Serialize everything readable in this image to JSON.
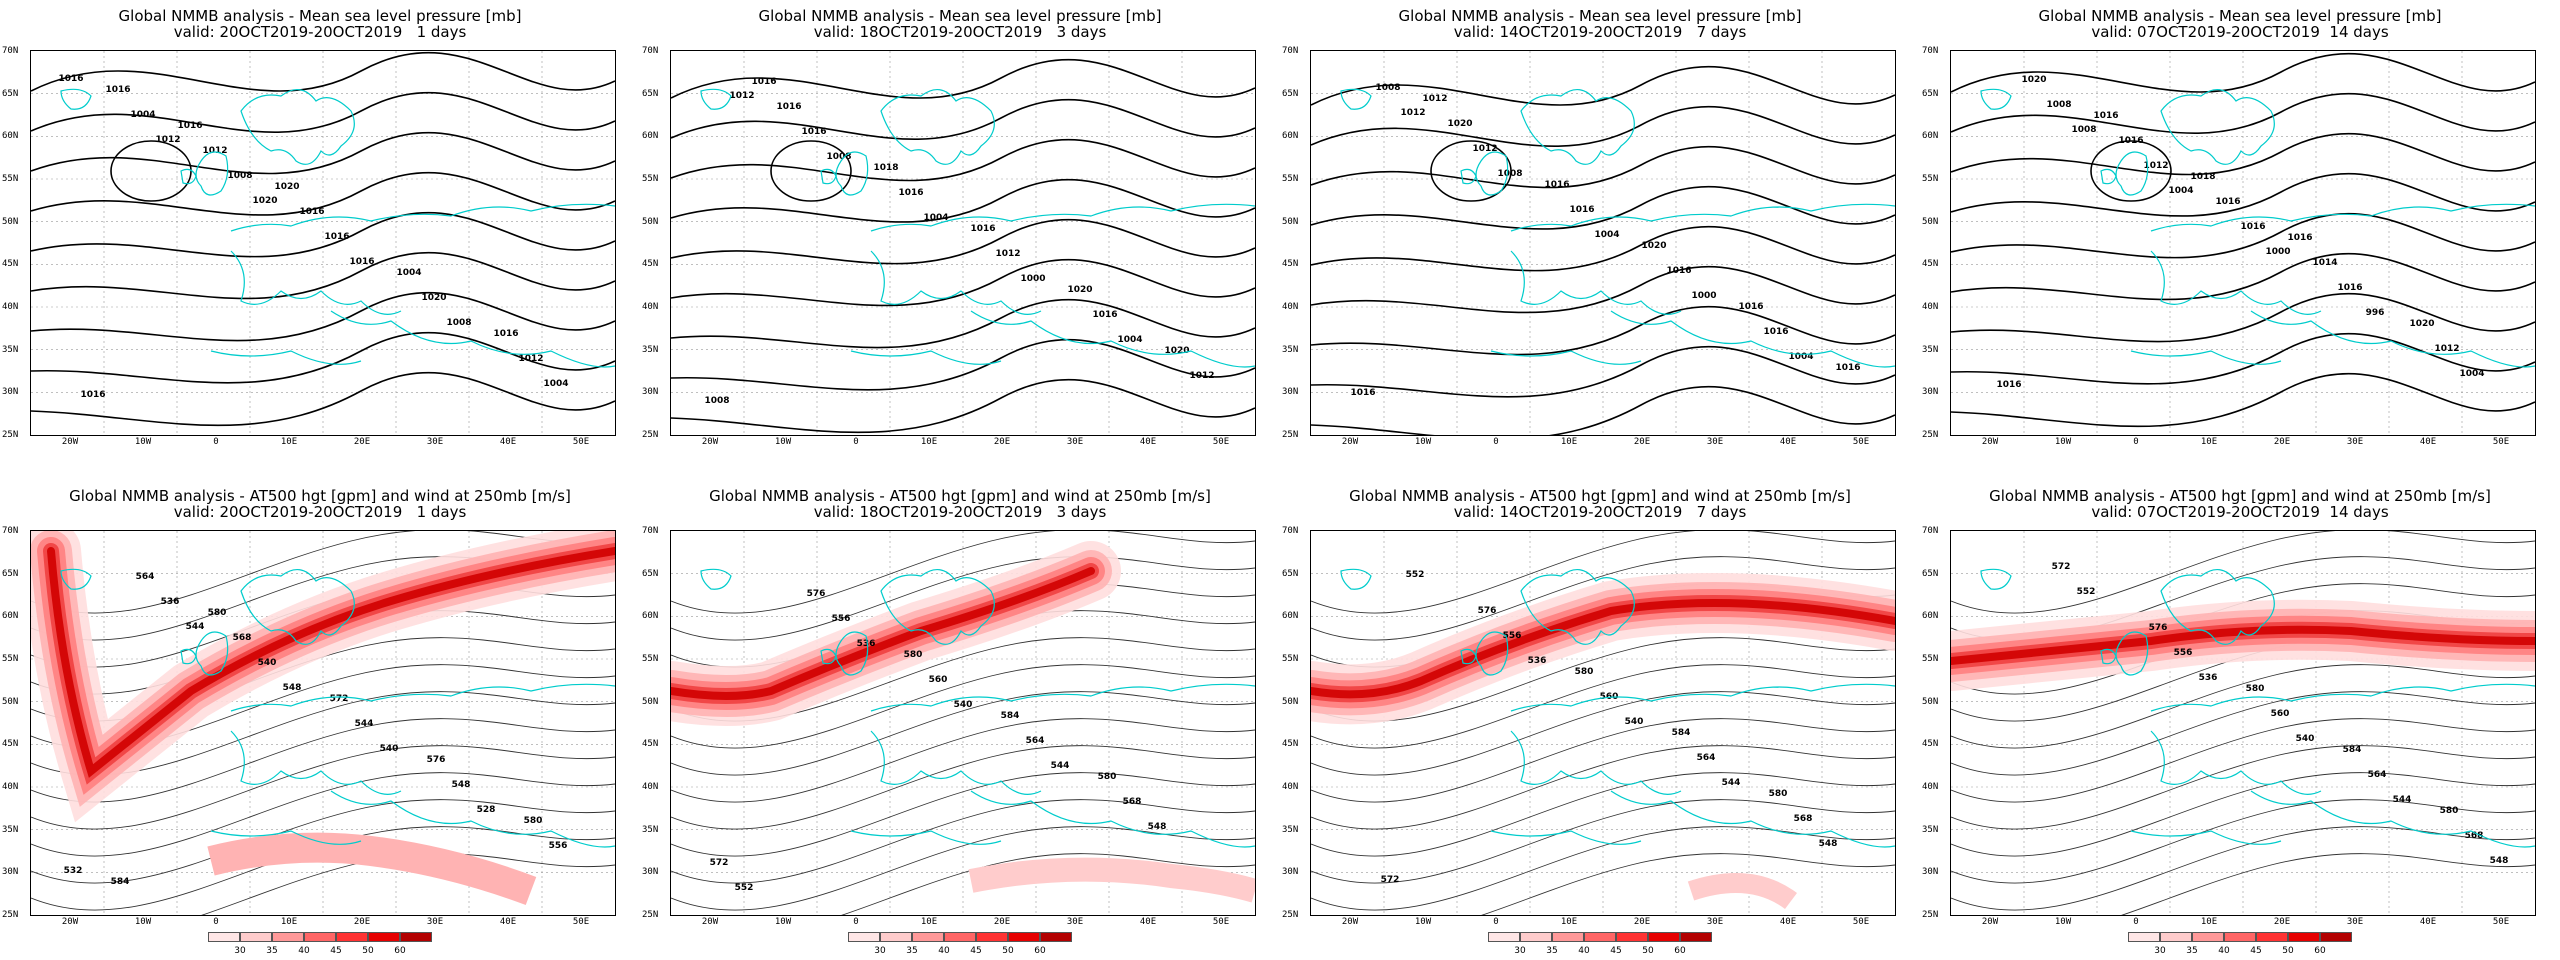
{
  "panels": [
    {
      "title": "Global NMMB analysis - Mean sea level pressure [mb]",
      "valid": "valid: 20OCT2019-20OCT2019   1 days",
      "type": "mslp",
      "contours": [
        "1016",
        "1012",
        "1020",
        "1016",
        "1008",
        "1004",
        "1004",
        "1008",
        "1016",
        "1020",
        "1012",
        "1016",
        "1012",
        "1016",
        "1004",
        "1016",
        "1016",
        "1016",
        "1020"
      ]
    },
    {
      "title": "Global NMMB analysis - Mean sea level pressure [mb]",
      "valid": "valid: 18OCT2019-20OCT2019   3 days",
      "type": "mslp",
      "contours": [
        "1012",
        "1008",
        "1004",
        "1000",
        "1004",
        "1008",
        "1016",
        "1016",
        "1012",
        "1016",
        "1012",
        "1016",
        "1018",
        "1016",
        "1020",
        "1020",
        "1016"
      ]
    },
    {
      "title": "Global NMMB analysis - Mean sea level pressure [mb]",
      "valid": "valid: 14OCT2019-20OCT2019   7 days",
      "type": "mslp",
      "contours": [
        "1012",
        "1008",
        "1004",
        "1000",
        "1004",
        "1008",
        "1012",
        "1016",
        "1016",
        "1016",
        "1016",
        "1020",
        "1016",
        "1020",
        "1016",
        "1016",
        "1012"
      ]
    },
    {
      "title": "Global NMMB analysis - Mean sea level pressure [mb]",
      "valid": "valid: 07OCT2019-20OCT2019  14 days",
      "type": "mslp",
      "contours": [
        "1008",
        "1004",
        "1000",
        "996",
        "1004",
        "1008",
        "1012",
        "1016",
        "1016",
        "1012",
        "1020",
        "1016",
        "1016",
        "1014",
        "1020",
        "1016",
        "1016",
        "1018",
        "1016"
      ]
    },
    {
      "title": "Global NMMB analysis - AT500 hgt [gpm] and wind at 250mb [m/s]",
      "valid": "valid: 20OCT2019-20OCT2019   1 days",
      "type": "z500",
      "contours": [
        "544",
        "548",
        "540",
        "528",
        "532",
        "536",
        "540",
        "544",
        "548",
        "556",
        "564",
        "568",
        "572",
        "576",
        "580",
        "584",
        "580"
      ]
    },
    {
      "title": "Global NMMB analysis - AT500 hgt [gpm] and wind at 250mb [m/s]",
      "valid": "valid: 18OCT2019-20OCT2019   3 days",
      "type": "z500",
      "contours": [
        "536",
        "540",
        "544",
        "548",
        "552",
        "556",
        "560",
        "564",
        "568",
        "572",
        "576",
        "580",
        "584",
        "580"
      ]
    },
    {
      "title": "Global NMMB analysis - AT500 hgt [gpm] and wind at 250mb [m/s]",
      "valid": "valid: 14OCT2019-20OCT2019   7 days",
      "type": "z500",
      "contours": [
        "536",
        "540",
        "544",
        "548",
        "552",
        "556",
        "560",
        "564",
        "568",
        "572",
        "576",
        "580",
        "584",
        "580"
      ]
    },
    {
      "title": "Global NMMB analysis - AT500 hgt [gpm] and wind at 250mb [m/s]",
      "valid": "valid: 07OCT2019-20OCT2019  14 days",
      "type": "z500",
      "contours": [
        "536",
        "540",
        "544",
        "548",
        "552",
        "556",
        "560",
        "564",
        "568",
        "572",
        "576",
        "580",
        "584",
        "580"
      ]
    }
  ],
  "lat_labels": [
    "70N",
    "65N",
    "60N",
    "55N",
    "50N",
    "45N",
    "40N",
    "35N",
    "30N",
    "25N"
  ],
  "lon_labels": [
    "20W",
    "10W",
    "0",
    "10E",
    "20E",
    "30E",
    "40E",
    "50E"
  ],
  "colorbar": {
    "labels": [
      "30",
      "35",
      "40",
      "45",
      "50",
      "60"
    ],
    "colors": [
      "#ffe6e6",
      "#ffcccc",
      "#ff9999",
      "#ff6666",
      "#ff3333",
      "#e60000",
      "#b30000"
    ]
  },
  "colors": {
    "coast": "#00cccc",
    "contour": "#000000",
    "grid": "#999999",
    "jet": "#ff3333"
  }
}
